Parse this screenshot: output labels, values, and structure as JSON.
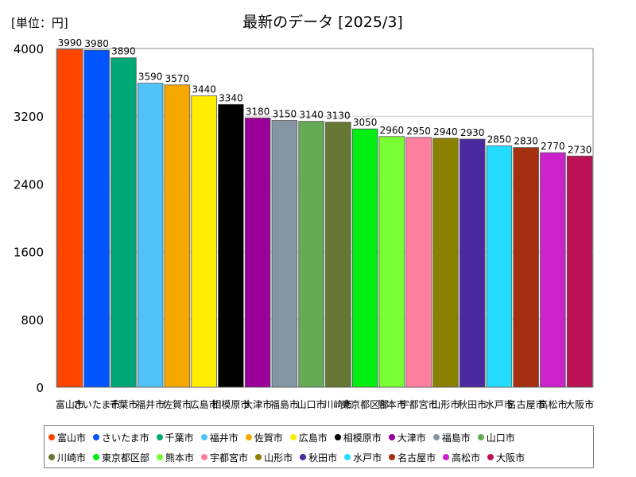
{
  "chart_data": {
    "type": "bar",
    "title": "最新のデータ [2025/3]",
    "unit_label": "[単位：円]",
    "xlabel": "",
    "ylabel": "",
    "ylim": [
      0,
      4000
    ],
    "yticks": [
      0,
      800,
      1600,
      2400,
      3200,
      4000
    ],
    "grid": "horizontal",
    "legend_position": "bottom",
    "categories": [
      "富山市",
      "さいたま市",
      "千葉市",
      "福井市",
      "佐賀市",
      "広島市",
      "相模原市",
      "大津市",
      "福島市",
      "山口市",
      "川崎市",
      "東京都区部",
      "熊本市",
      "宇都宮市",
      "山形市",
      "秋田市",
      "水戸市",
      "名古屋市",
      "高松市",
      "大阪市"
    ],
    "values": [
      3990,
      3980,
      3890,
      3590,
      3570,
      3440,
      3340,
      3180,
      3150,
      3140,
      3130,
      3050,
      2960,
      2950,
      2940,
      2930,
      2850,
      2830,
      2770,
      2730
    ],
    "colors": [
      "#ff4500",
      "#0055ff",
      "#00a878",
      "#4fc3f7",
      "#f5a800",
      "#ffee00",
      "#000000",
      "#990099",
      "#8496a3",
      "#66aa55",
      "#667733",
      "#00ee11",
      "#77ff33",
      "#ff7f9f",
      "#8b8000",
      "#4b2aa0",
      "#22ddff",
      "#a5300f",
      "#cc22cc",
      "#bb1155"
    ],
    "legend": [
      "富山市",
      "さいたま市",
      "千葉市",
      "福井市",
      "佐賀市",
      "広島市",
      "相模原市",
      "大津市",
      "福島市",
      "山口市",
      "川崎市",
      "東京都区部",
      "熊本市",
      "宇都宮市",
      "山形市",
      "秋田市",
      "水戸市",
      "名古屋市",
      "高松市",
      "大阪市"
    ]
  }
}
